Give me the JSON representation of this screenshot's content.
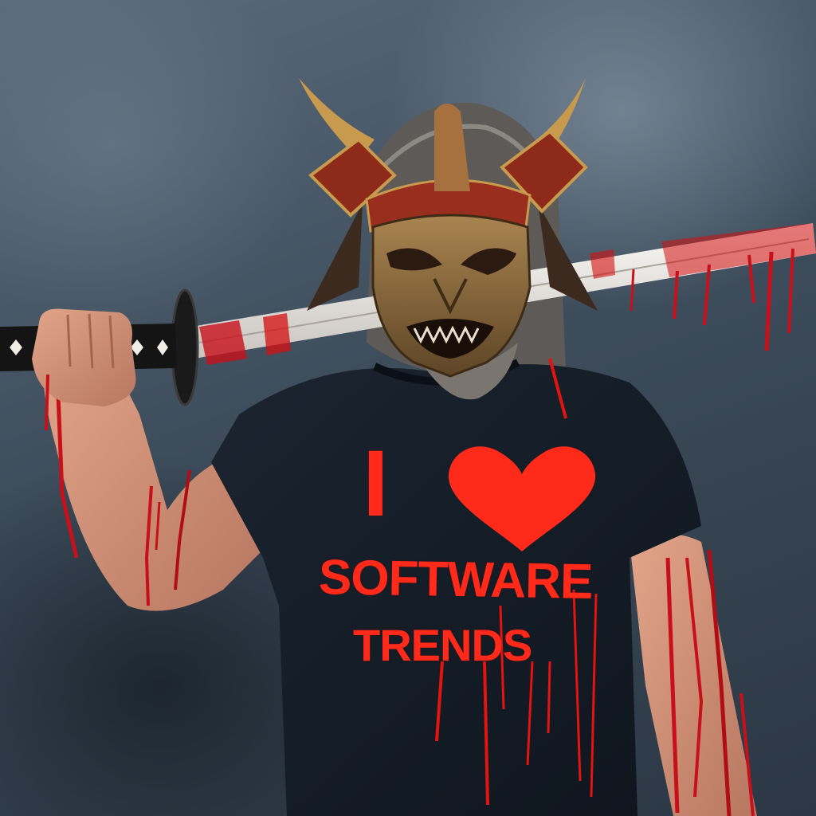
{
  "shirt": {
    "line1": "I",
    "line2": "SOFTWARE",
    "line3": "TRENDS"
  },
  "colors": {
    "background": "#3e4d5c",
    "shirt": "#131c26",
    "print": "#ff2a1a",
    "blood": "#d40f0f",
    "mask": "#8a6a3a",
    "blade": "#e9e6e2"
  }
}
